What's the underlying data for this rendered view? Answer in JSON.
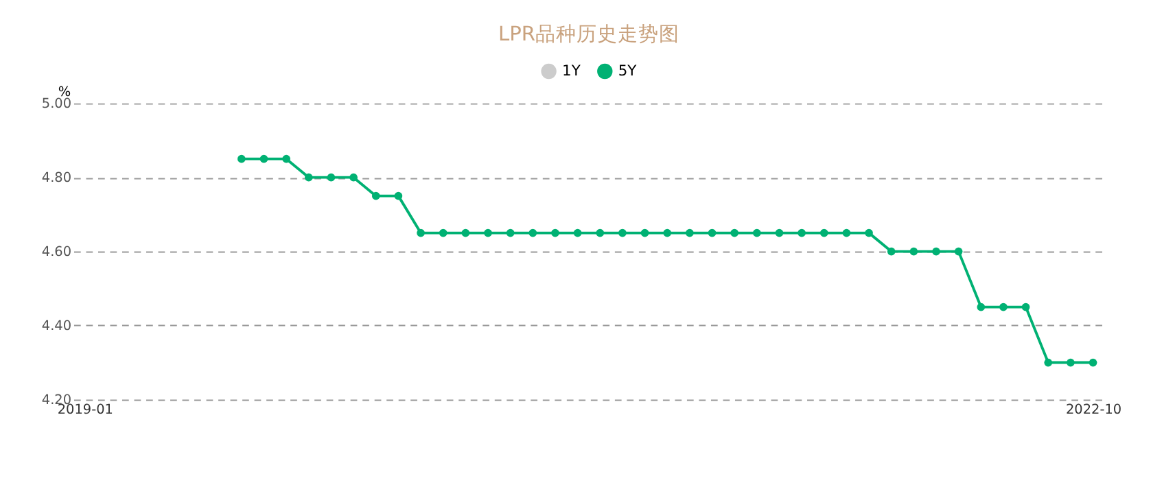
{
  "chart_data": {
    "type": "line",
    "title": "LPR品种历史走势图",
    "ylabel": "%",
    "categories": [
      "2019-01",
      null,
      null,
      null,
      null,
      null,
      null,
      null,
      null,
      null,
      null,
      null,
      null,
      null,
      null,
      null,
      null,
      null,
      null,
      null,
      null,
      null,
      null,
      null,
      null,
      null,
      null,
      null,
      null,
      null,
      null,
      null,
      null,
      null,
      null,
      null,
      null,
      null,
      null,
      null,
      null,
      null,
      null,
      null,
      null,
      "2022-10"
    ],
    "series": [
      {
        "name": "1Y",
        "color": "#cccccc",
        "values": [
          null,
          null,
          null,
          null,
          null,
          null,
          null,
          null,
          null,
          null,
          null,
          null,
          null,
          null,
          null,
          null,
          null,
          null,
          null,
          null,
          null,
          null,
          null,
          null,
          null,
          null,
          null,
          null,
          null,
          null,
          null,
          null,
          null,
          null,
          null,
          null,
          null,
          null,
          null,
          null,
          null,
          null,
          null,
          null,
          null,
          null
        ]
      },
      {
        "name": "5Y",
        "color": "#00b173",
        "values": [
          null,
          null,
          null,
          null,
          null,
          null,
          null,
          4.85,
          4.85,
          4.85,
          4.8,
          4.8,
          4.8,
          4.75,
          4.75,
          4.65,
          4.65,
          4.65,
          4.65,
          4.65,
          4.65,
          4.65,
          4.65,
          4.65,
          4.65,
          4.65,
          4.65,
          4.65,
          4.65,
          4.65,
          4.65,
          4.65,
          4.65,
          4.65,
          4.65,
          4.65,
          4.6,
          4.6,
          4.6,
          4.6,
          4.45,
          4.45,
          4.45,
          4.3,
          4.3,
          4.3
        ]
      }
    ],
    "ylim": [
      4.2,
      5.0
    ],
    "yticks": [
      {
        "value": 4.2,
        "label": "4.20"
      },
      {
        "value": 4.4,
        "label": "4.40"
      },
      {
        "value": 4.6,
        "label": "4.60"
      },
      {
        "value": 4.8,
        "label": "4.80"
      },
      {
        "value": 5.0,
        "label": "5.00"
      }
    ],
    "grid": "y",
    "legend": "top",
    "marker": "circle",
    "line_style": "solid"
  }
}
